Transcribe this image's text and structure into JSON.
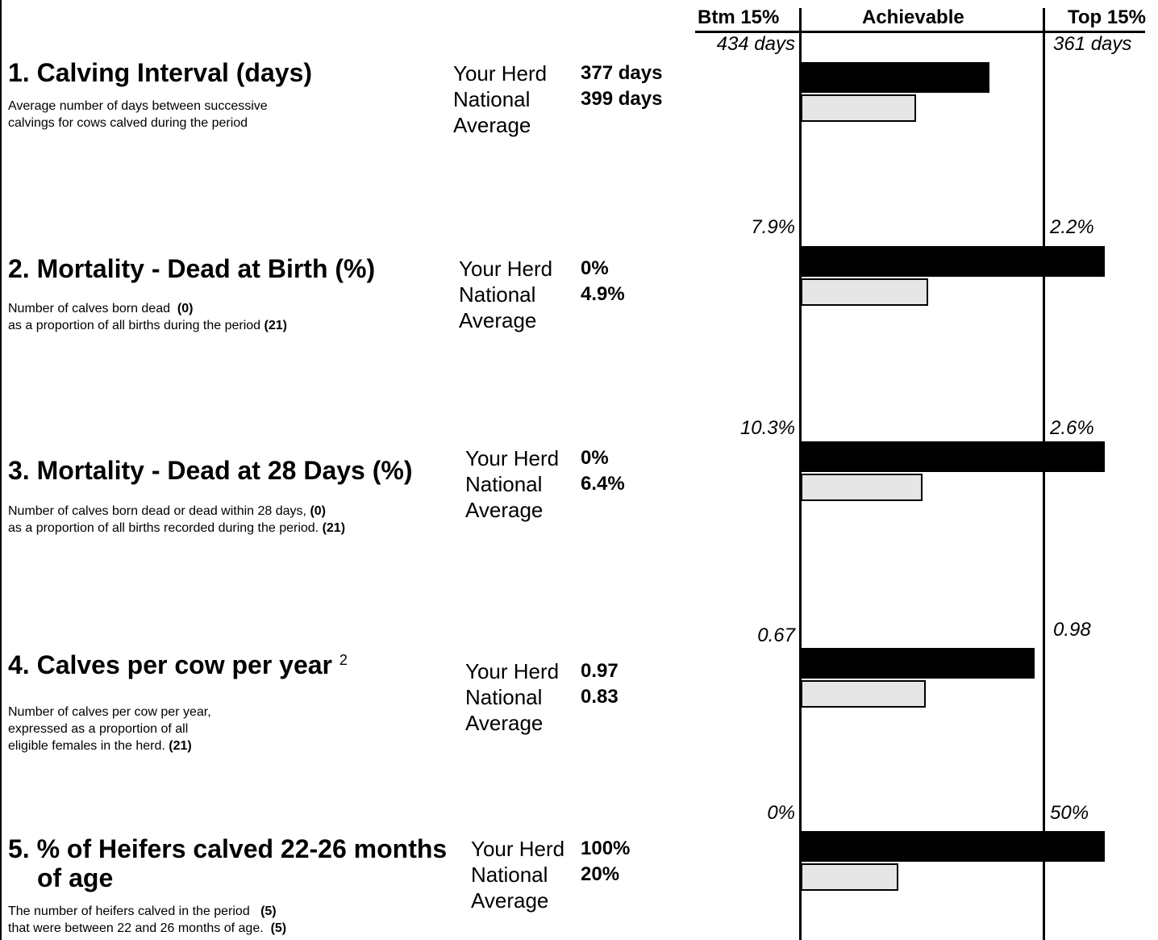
{
  "header": {
    "btm": "Btm 15%",
    "achievable": "Achievable",
    "top": "Top 15%"
  },
  "labels": {
    "your_herd": "Your Herd",
    "national": "National",
    "average": "Average"
  },
  "colors": {
    "herd_bar": "#000000",
    "national_bar": "#e6e6e6"
  },
  "sections": [
    {
      "title": "1. Calving Interval (days)",
      "desc": [
        "Average number of days between successive",
        "calvings for cows calved during the period"
      ],
      "your_herd": "377 days",
      "national": "399 days",
      "btm": "434 days",
      "top": "361 days",
      "herd_fill": 0.62,
      "national_fill": 0.38
    },
    {
      "title": "2. Mortality - Dead at Birth (%)",
      "desc": [
        "Number of calves born dead",
        "as a proportion of all births during the period"
      ],
      "desc_counts": [
        "(0)",
        "(21)"
      ],
      "your_herd": "0%",
      "national": "4.9%",
      "btm": "7.9%",
      "top": "2.2%",
      "herd_fill": 1.0,
      "national_fill": 0.42
    },
    {
      "title": "3. Mortality - Dead at 28 Days (%)",
      "desc": [
        "Number of calves born dead or dead within 28 days,",
        "as a proportion of all births recorded during the period."
      ],
      "desc_counts": [
        "(0)",
        "(21)"
      ],
      "your_herd": "0%",
      "national": "6.4%",
      "btm": "10.3%",
      "top": "2.6%",
      "herd_fill": 1.0,
      "national_fill": 0.4
    },
    {
      "title": "4. Calves per cow per year",
      "title_sup": "2",
      "desc": [
        "Number of calves per cow per year,",
        "expressed as a proportion of all",
        "eligible females in the herd."
      ],
      "desc_counts": [
        "(21)"
      ],
      "your_herd": "0.97",
      "national": "0.83",
      "btm": "0.67",
      "top": "0.98",
      "herd_fill": 0.77,
      "national_fill": 0.41
    },
    {
      "title": "5. % of Heifers calved 22-26 months",
      "title2": "of age",
      "desc": [
        "The number of heifers calved in the period",
        "that were between 22 and 26 months of age."
      ],
      "desc_counts": [
        "(5)",
        "(5)"
      ],
      "your_herd": "100%",
      "national": "20%",
      "btm": "0%",
      "top": "50%",
      "herd_fill": 1.0,
      "national_fill": 0.32
    }
  ]
}
